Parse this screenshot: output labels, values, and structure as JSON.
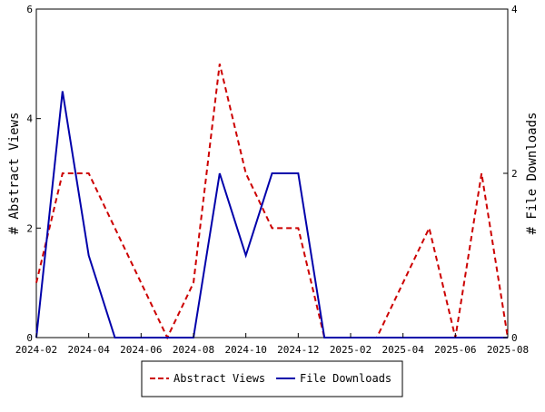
{
  "chart_data": {
    "type": "line",
    "title": "",
    "xlabel": "",
    "ylabel_left": "# Abstract Views",
    "ylabel_right": "# File Downloads",
    "x": [
      "2024-02",
      "2024-03",
      "2024-04",
      "2024-05",
      "2024-06",
      "2024-07",
      "2024-08",
      "2024-09",
      "2024-10",
      "2024-11",
      "2024-12",
      "2025-01",
      "2025-02",
      "2025-03",
      "2025-04",
      "2025-05",
      "2025-06",
      "2025-07",
      "2025-08"
    ],
    "x_tick_labels": [
      "2024-02",
      "2024-04",
      "2024-06",
      "2024-08",
      "2024-10",
      "2024-12",
      "2025-02",
      "2025-04",
      "2025-06",
      "2025-08"
    ],
    "ylim_left": [
      0,
      6
    ],
    "ylim_right": [
      0,
      4
    ],
    "left_ticks": [
      "0",
      "2",
      "4",
      "6"
    ],
    "right_ticks": [
      "0",
      "2",
      "4"
    ],
    "grid": false,
    "legend_position": "bottom",
    "series": [
      {
        "name": "Abstract Views",
        "axis": "left",
        "color": "#cc0000",
        "dash": "dashed",
        "values": [
          1,
          3,
          3,
          2,
          1,
          0,
          1,
          5,
          3,
          2,
          2,
          0,
          0,
          0,
          1,
          2,
          0,
          3,
          0
        ]
      },
      {
        "name": "File Downloads",
        "axis": "right",
        "color": "#0000aa",
        "dash": "solid",
        "values": [
          0,
          3,
          1,
          0,
          0,
          0,
          0,
          2,
          1,
          2,
          2,
          0,
          0,
          0,
          0,
          0,
          0,
          0,
          0
        ]
      }
    ]
  }
}
